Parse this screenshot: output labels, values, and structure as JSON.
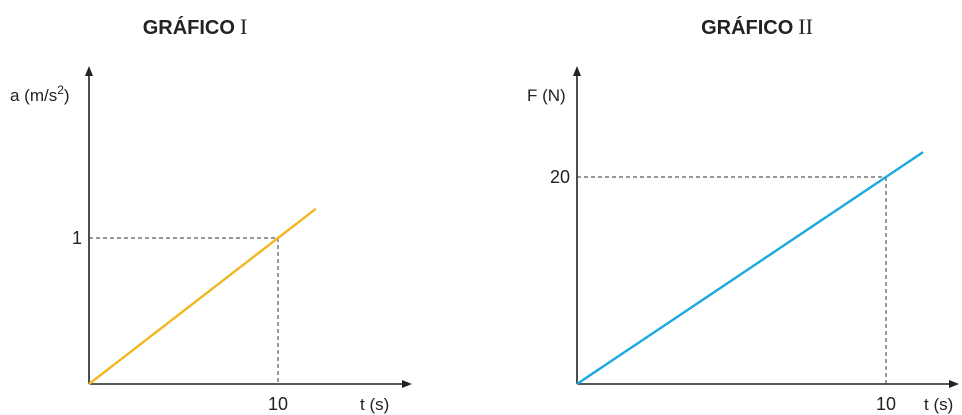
{
  "chart_data": [
    {
      "type": "line",
      "title": "GRÁFICO",
      "title_numeral": "I",
      "xlabel": "t (s)",
      "ylabel": "a (m/s",
      "ylabel_sup": "2",
      "ylabel_close": ")",
      "x_ticks": [
        "10"
      ],
      "y_ticks": [
        "1"
      ],
      "series": [
        {
          "color": "#f0b61e",
          "x": [
            0,
            12
          ],
          "y": [
            0,
            1.2
          ]
        }
      ],
      "guides": {
        "x": 10,
        "y": 1
      }
    },
    {
      "type": "line",
      "title": "GRÁFICO",
      "title_numeral": "II",
      "xlabel": "t (s)",
      "ylabel": "F (N)",
      "x_ticks": [
        "10"
      ],
      "y_ticks": [
        "20"
      ],
      "series": [
        {
          "color": "#19a9de",
          "x": [
            0,
            11.2
          ],
          "y": [
            0,
            22.4
          ]
        }
      ],
      "guides": {
        "x": 10,
        "y": 20
      }
    }
  ]
}
